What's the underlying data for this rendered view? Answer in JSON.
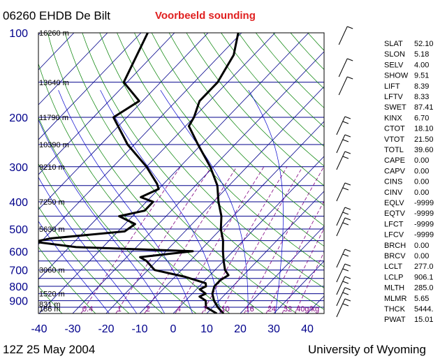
{
  "header": {
    "station": "06260 EHDB De Bilt",
    "subtitle": "Voorbeeld sounding"
  },
  "footer": {
    "time": "12Z 25 May 2004",
    "institution": "University of Wyoming"
  },
  "colors": {
    "pressure_line": "#00008b",
    "height_text": "#000000",
    "pressure_label": "#00008b",
    "isotherm": "#00008b",
    "dry_adiabat": "#008000",
    "moist_adiabat": "#0000cd",
    "mixing_ratio": "#800080",
    "temp_profile": "#000000",
    "title_red": "#e02020"
  },
  "chart_data": {
    "type": "skew-t",
    "x_axis": {
      "label": "",
      "unit": "C",
      "ticks": [
        -40,
        -30,
        -20,
        -10,
        0,
        10,
        20,
        30,
        40
      ],
      "range": [
        -40,
        40
      ]
    },
    "y_axis": {
      "label": "",
      "unit": "hPa",
      "log_scale": true,
      "range": [
        950,
        100
      ],
      "ticks": [
        100,
        200,
        300,
        400,
        500,
        600,
        700,
        800,
        900
      ]
    },
    "height_labels": [
      {
        "pressure": 100,
        "label": "16260 m"
      },
      {
        "pressure": 150,
        "label": "13640 m"
      },
      {
        "pressure": 200,
        "label": "11790 m"
      },
      {
        "pressure": 250,
        "label": "10390 m"
      },
      {
        "pressure": 300,
        "label": "9210 m"
      },
      {
        "pressure": 400,
        "label": "7250 m"
      },
      {
        "pressure": 500,
        "label": "5630 m"
      },
      {
        "pressure": 700,
        "label": "3060 m"
      },
      {
        "pressure": 850,
        "label": "1520 m"
      },
      {
        "pressure": 925,
        "label": "831 m"
      },
      {
        "pressure": 1000,
        "label": "186 m"
      }
    ],
    "mixing_ratio_labels": [
      "0.4",
      "1",
      "2",
      "4",
      "7",
      "10",
      "16",
      "24",
      "32",
      "40g/kg"
    ],
    "series": [
      {
        "type": "temperature",
        "points": [
          {
            "p": 1000,
            "t": 15
          },
          {
            "p": 950,
            "t": 11.5
          },
          {
            "p": 925,
            "t": 10
          },
          {
            "p": 900,
            "t": 8.5
          },
          {
            "p": 850,
            "t": 6
          },
          {
            "p": 800,
            "t": 4.5
          },
          {
            "p": 760,
            "t": 4.5
          },
          {
            "p": 730,
            "t": 5.5
          },
          {
            "p": 700,
            "t": 3
          },
          {
            "p": 650,
            "t": 0
          },
          {
            "p": 600,
            "t": -3
          },
          {
            "p": 550,
            "t": -6
          },
          {
            "p": 500,
            "t": -10
          },
          {
            "p": 450,
            "t": -13.5
          },
          {
            "p": 400,
            "t": -18.5
          },
          {
            "p": 350,
            "t": -23.5
          },
          {
            "p": 300,
            "t": -31
          },
          {
            "p": 250,
            "t": -41
          },
          {
            "p": 215,
            "t": -49
          },
          {
            "p": 200,
            "t": -50
          },
          {
            "p": 175,
            "t": -53
          },
          {
            "p": 150,
            "t": -53
          },
          {
            "p": 120,
            "t": -56
          },
          {
            "p": 100,
            "t": -61
          }
        ]
      },
      {
        "type": "dewpoint",
        "points": [
          {
            "p": 1000,
            "t": 13
          },
          {
            "p": 950,
            "t": 8
          },
          {
            "p": 900,
            "t": 6
          },
          {
            "p": 870,
            "t": 3
          },
          {
            "p": 850,
            "t": 4
          },
          {
            "p": 820,
            "t": 1
          },
          {
            "p": 800,
            "t": 2
          },
          {
            "p": 780,
            "t": 1
          },
          {
            "p": 740,
            "t": -7
          },
          {
            "p": 700,
            "t": -18
          },
          {
            "p": 650,
            "t": -23
          },
          {
            "p": 630,
            "t": -26
          },
          {
            "p": 600,
            "t": -12
          },
          {
            "p": 580,
            "t": -48
          },
          {
            "p": 555,
            "t": -62
          },
          {
            "p": 540,
            "t": -58
          },
          {
            "p": 510,
            "t": -38
          },
          {
            "p": 480,
            "t": -37
          },
          {
            "p": 450,
            "t": -44
          },
          {
            "p": 430,
            "t": -38
          },
          {
            "p": 400,
            "t": -38
          },
          {
            "p": 385,
            "t": -43
          },
          {
            "p": 360,
            "t": -40
          },
          {
            "p": 345,
            "t": -42
          },
          {
            "p": 300,
            "t": -50
          },
          {
            "p": 250,
            "t": -62
          },
          {
            "p": 200,
            "t": -74
          },
          {
            "p": 175,
            "t": -71
          },
          {
            "p": 150,
            "t": -81
          },
          {
            "p": 100,
            "t": -88
          }
        ]
      }
    ]
  },
  "indices": [
    {
      "name": "SLAT",
      "value": "52.10"
    },
    {
      "name": "SLON",
      "value": "5.18"
    },
    {
      "name": "SELV",
      "value": "4.00"
    },
    {
      "name": "SHOW",
      "value": "9.51"
    },
    {
      "name": "LIFT",
      "value": "8.39"
    },
    {
      "name": "LFTV",
      "value": "8.33"
    },
    {
      "name": "SWET",
      "value": "87.41"
    },
    {
      "name": "KINX",
      "value": "6.70"
    },
    {
      "name": "CTOT",
      "value": "18.10"
    },
    {
      "name": "VTOT",
      "value": "21.50"
    },
    {
      "name": "TOTL",
      "value": "39.60"
    },
    {
      "name": "CAPE",
      "value": "0.00"
    },
    {
      "name": "CAPV",
      "value": "0.00"
    },
    {
      "name": "CINS",
      "value": "0.00"
    },
    {
      "name": "CINV",
      "value": "0.00"
    },
    {
      "name": "EQLV",
      "value": "-9999"
    },
    {
      "name": "EQTV",
      "value": "-9999"
    },
    {
      "name": "LFCT",
      "value": "-9999"
    },
    {
      "name": "LFCV",
      "value": "-9999"
    },
    {
      "name": "BRCH",
      "value": "0.00"
    },
    {
      "name": "BRCV",
      "value": "0.00"
    },
    {
      "name": "LCLT",
      "value": "277.0"
    },
    {
      "name": "LCLP",
      "value": "906.1"
    },
    {
      "name": "MLTH",
      "value": "285.0"
    },
    {
      "name": "MLMR",
      "value": "5.65"
    },
    {
      "name": "THCK",
      "value": "5444."
    },
    {
      "name": "PWAT",
      "value": "15.01"
    }
  ]
}
